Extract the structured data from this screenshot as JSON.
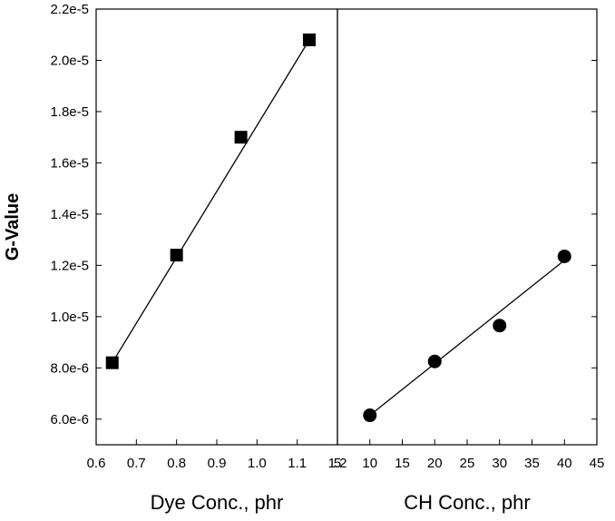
{
  "chart_data": [
    {
      "type": "scatter",
      "ylabel": "G-Value",
      "xlabel": "Dye Conc., phr",
      "xlim": [
        0.6,
        1.2
      ],
      "ylim": [
        5e-06,
        2.2e-05
      ],
      "x_ticks": [
        "0.6",
        "0.7",
        "0.8",
        "0.9",
        "1.0",
        "1.1",
        "1.2"
      ],
      "y_ticks": [
        "6.0e-6",
        "8.0e-6",
        "1.0e-5",
        "1.2e-5",
        "1.4e-5",
        "1.6e-5",
        "1.8e-5",
        "2.0e-5",
        "2.2e-5"
      ],
      "marker": "square",
      "series": [
        {
          "x": [
            0.64,
            0.8,
            0.96,
            1.13
          ],
          "y": [
            8.2e-06,
            1.24e-05,
            1.7e-05,
            2.08e-05
          ]
        }
      ],
      "fit_line": {
        "x": [
          0.64,
          1.13
        ],
        "y": [
          8.2e-06,
          2.08e-05
        ]
      },
      "grid": false
    },
    {
      "type": "scatter",
      "xlabel": "CH Conc., phr",
      "xlim": [
        5,
        45
      ],
      "ylim": [
        5e-06,
        2.2e-05
      ],
      "x_ticks": [
        "5",
        "10",
        "15",
        "20",
        "25",
        "30",
        "35",
        "40",
        "45"
      ],
      "marker": "circle",
      "series": [
        {
          "x": [
            10,
            20,
            30,
            40
          ],
          "y": [
            6.15e-06,
            8.25e-06,
            9.65e-06,
            1.235e-05
          ]
        }
      ],
      "fit_line": {
        "x": [
          10,
          40
        ],
        "y": [
          6.15e-06,
          1.22e-05
        ]
      },
      "grid": false
    }
  ]
}
